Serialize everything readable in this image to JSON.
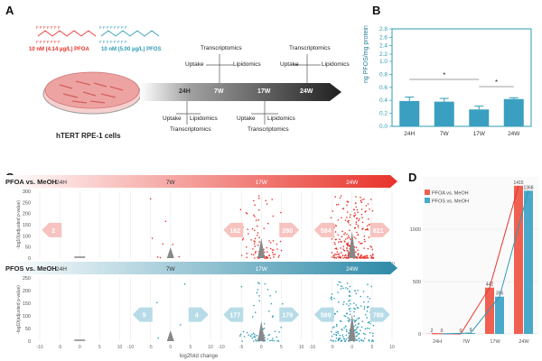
{
  "panels": {
    "A": "A",
    "B": "B",
    "C": "C",
    "D": "D"
  },
  "panelA": {
    "pfoa_label": "10 nM (4.14 µg/L) PFOA",
    "pfos_label": "10 nM (5.00 µg/L) PFOS",
    "cell_label": "hTERT RPE-1 cells",
    "timepoints": [
      "24H",
      "7W",
      "17W",
      "24W"
    ],
    "uptake": "Uptake",
    "lipidomics": "Lipidomics",
    "transcriptomics": "Transcriptomics",
    "colors": {
      "pfoa": "#e8322a",
      "pfos": "#2e9bb5",
      "dish": "#e37a7a",
      "arrow_dark": "#222222"
    }
  },
  "panelB": {
    "ylabel": "ng PFOS/mg protein",
    "significance": "*",
    "chart_data": {
      "type": "bar",
      "categories": [
        "24H",
        "7W",
        "17W",
        "24W"
      ],
      "values": [
        0.39,
        0.38,
        0.26,
        0.42
      ],
      "errors": [
        0.06,
        0.05,
        0.05,
        0.02
      ],
      "yticks": [
        0.0,
        0.2,
        0.4,
        0.6,
        0.8,
        1.0,
        2.2,
        2.4,
        2.6,
        2.8
      ],
      "ylim": [
        0,
        2.8
      ],
      "color": "#3a9fc0"
    }
  },
  "panelC": {
    "pfoa_title": "PFOA vs. MeOH",
    "pfos_title": "PFOS vs. MeOH",
    "timepoints": [
      "24H",
      "7W",
      "17W",
      "24W"
    ],
    "ylabel": "-log10(adjusted p-value)",
    "xlabel": "log2fold change",
    "yticks": [
      "0",
      "50",
      "100",
      "150",
      "200",
      "250",
      "300"
    ],
    "xticks": [
      "-10",
      "-5",
      "0",
      "5",
      "10"
    ],
    "pfoa_counts": {
      "24H": {
        "down": "2",
        "up": ""
      },
      "7W": {
        "down": "",
        "up": ""
      },
      "17W": {
        "down": "162",
        "up": "280"
      },
      "24W": {
        "down": "594",
        "up": "821"
      }
    },
    "pfos_counts": {
      "24H": {
        "down": "",
        "up": ""
      },
      "7W": {
        "down": "5",
        "up": "4"
      },
      "17W": {
        "down": "177",
        "up": "179"
      },
      "24W": {
        "down": "580",
        "up": "788"
      }
    }
  },
  "panelD": {
    "legend_pfoa": "PFOA vs. MeOH",
    "legend_pfos": "PFOS vs. MeOH",
    "chart_data": {
      "type": "bar",
      "categories": [
        "24H",
        "7W",
        "17W",
        "24W"
      ],
      "series": [
        {
          "name": "PFOA vs. MeOH",
          "values": [
            2,
            0,
            442,
            1415
          ],
          "color": "#f06050"
        },
        {
          "name": "PFOS vs. MeOH",
          "values": [
            0,
            9,
            356,
            1368
          ],
          "color": "#4aa8c8"
        }
      ],
      "ylim": [
        0,
        1500
      ],
      "yticks": [
        0,
        500,
        1000
      ],
      "value_labels": [
        [
          "2",
          "0",
          "442",
          "1415"
        ],
        [
          "0",
          "9",
          "356",
          "1368"
        ]
      ]
    }
  }
}
